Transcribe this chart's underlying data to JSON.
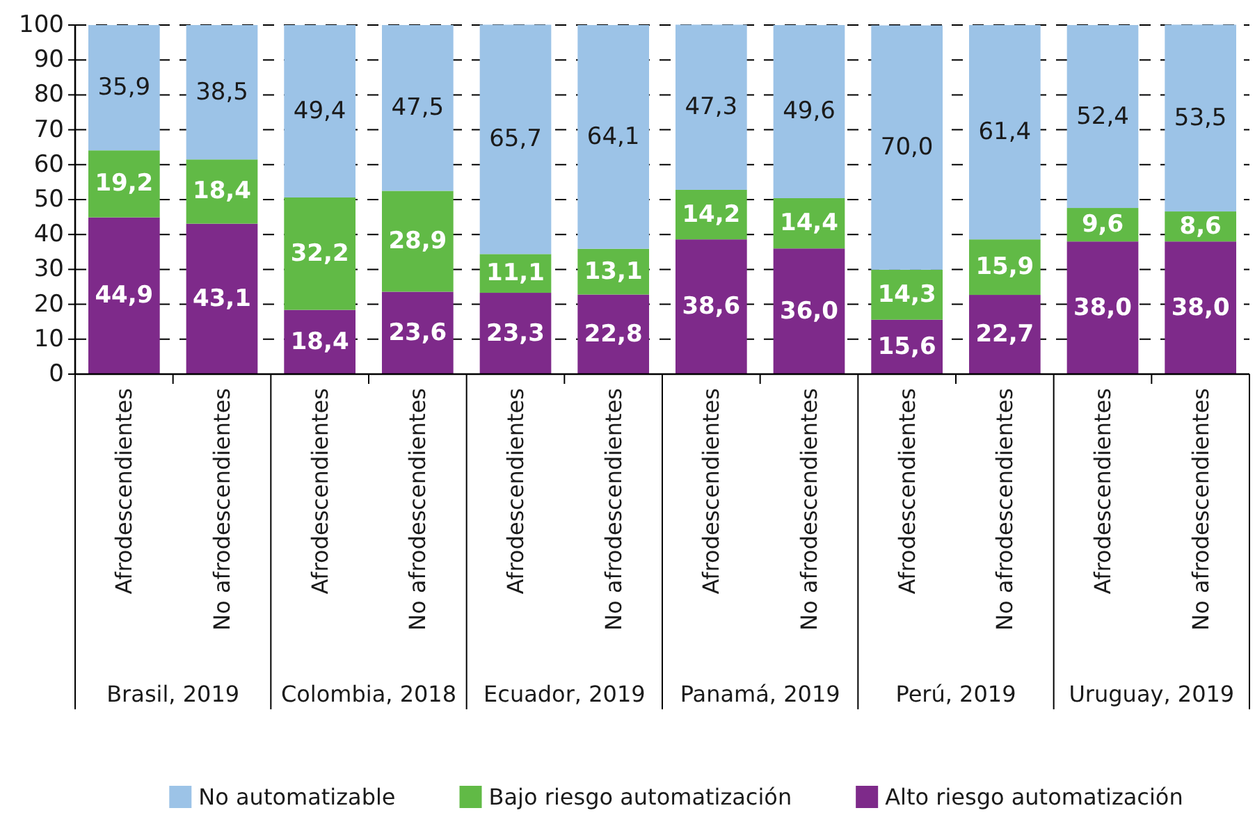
{
  "chart_data": {
    "type": "bar",
    "stacked": true,
    "categories": [
      "Afrodescendientes",
      "No afrodescendientes",
      "Afrodescendientes",
      "No afrodescendientes",
      "Afrodescendientes",
      "No afrodescendientes",
      "Afrodescendientes",
      "No afrodescendientes",
      "Afrodescendientes",
      "No afrodescendientes",
      "Afrodescendientes",
      "No afrodescendientes"
    ],
    "series": [
      {
        "name": "Alto riesgo automatización",
        "color": "#7e2a8a",
        "values": [
          44.9,
          43.1,
          18.4,
          23.6,
          23.3,
          22.8,
          38.6,
          36.0,
          15.6,
          22.7,
          38.0,
          38.0
        ],
        "value_labels": [
          "44,9",
          "43,1",
          "18,4",
          "23,6",
          "23,3",
          "22,8",
          "38,6",
          "36,0",
          "15,6",
          "22,7",
          "38,0",
          "38,0"
        ]
      },
      {
        "name": "Bajo riesgo automatización",
        "color": "#61ba46",
        "values": [
          19.2,
          18.4,
          32.2,
          28.9,
          11.1,
          13.1,
          14.2,
          14.4,
          14.3,
          15.9,
          9.6,
          8.6
        ],
        "value_labels": [
          "19,2",
          "18,4",
          "32,2",
          "28,9",
          "11,1",
          "13,1",
          "14,2",
          "14,4",
          "14,3",
          "15,9",
          "9,6",
          "8,6"
        ]
      },
      {
        "name": "No automatizable",
        "color": "#9cc3e7",
        "values": [
          35.9,
          38.5,
          49.4,
          47.5,
          65.7,
          64.1,
          47.3,
          49.6,
          70.0,
          61.4,
          52.4,
          53.5
        ],
        "value_labels": [
          "35,9",
          "38,5",
          "49,4",
          "47,5",
          "65,7",
          "64,1",
          "47,3",
          "49,6",
          "70,0",
          "61,4",
          "52,4",
          "53,5"
        ]
      }
    ],
    "ylim": [
      0,
      100
    ],
    "yticks": [
      0,
      10,
      20,
      30,
      40,
      50,
      60,
      70,
      80,
      90,
      100
    ],
    "grid": "y",
    "legend": "bottom",
    "annotations": [
      "Brasil, 2019",
      "Colombia, 2018",
      "Ecuador, 2019",
      "Panamá, 2019",
      "Perú, 2019",
      "Uruguay, 2019"
    ]
  }
}
